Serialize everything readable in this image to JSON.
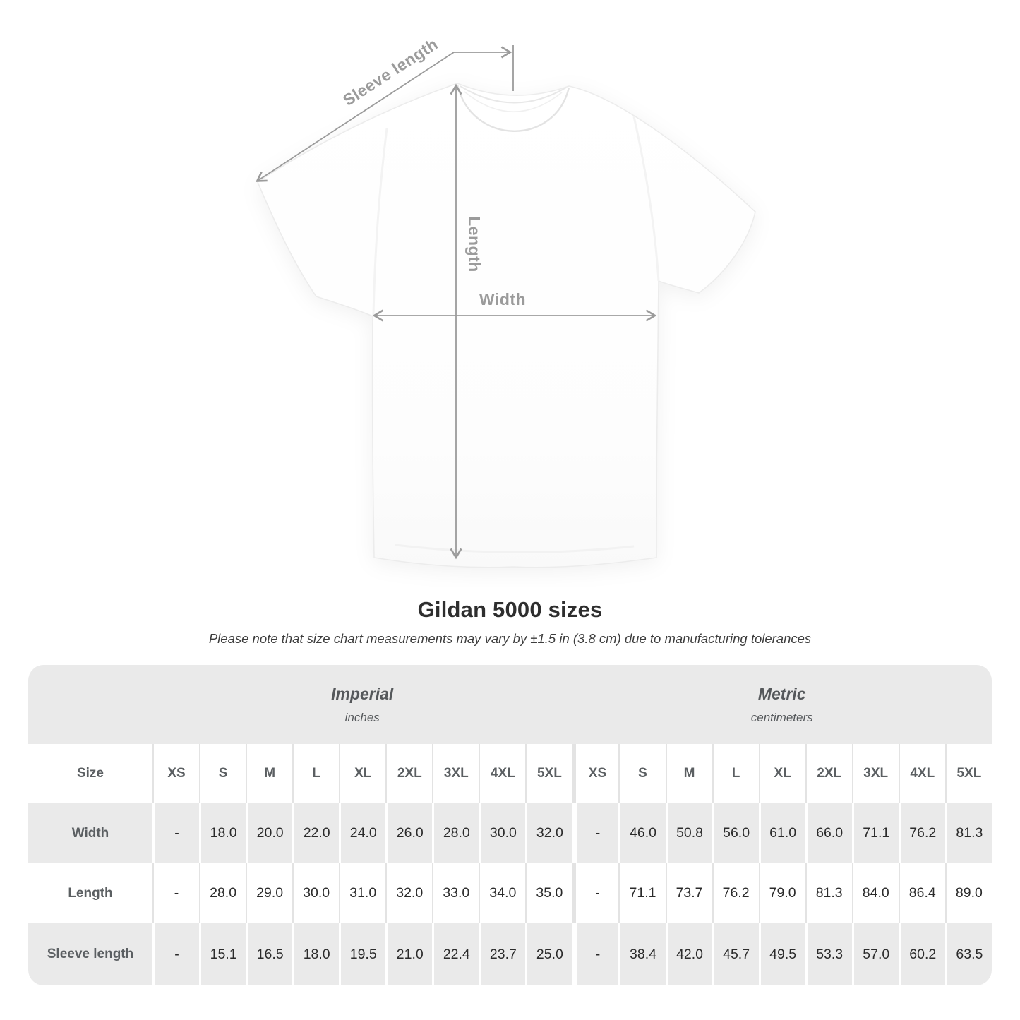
{
  "figure": {
    "labels": {
      "sleeve_length": "Sleeve length",
      "length": "Length",
      "width": "Width"
    }
  },
  "title": "Gildan 5000 sizes",
  "subtitle": "Please note that size chart measurements may vary by ±1.5 in (3.8 cm) due to manufacturing tolerances",
  "table": {
    "sections": [
      {
        "name": "Imperial",
        "unit": "inches"
      },
      {
        "name": "Metric",
        "unit": "centimeters"
      }
    ],
    "size_header": "Size",
    "sizes": [
      "XS",
      "S",
      "M",
      "L",
      "XL",
      "2XL",
      "3XL",
      "4XL",
      "5XL"
    ],
    "rows": [
      {
        "label": "Width",
        "imperial": [
          "-",
          "18.0",
          "20.0",
          "22.0",
          "24.0",
          "26.0",
          "28.0",
          "30.0",
          "32.0"
        ],
        "metric": [
          "-",
          "46.0",
          "50.8",
          "56.0",
          "61.0",
          "66.0",
          "71.1",
          "76.2",
          "81.3"
        ]
      },
      {
        "label": "Length",
        "imperial": [
          "-",
          "28.0",
          "29.0",
          "30.0",
          "31.0",
          "32.0",
          "33.0",
          "34.0",
          "35.0"
        ],
        "metric": [
          "-",
          "71.1",
          "73.7",
          "76.2",
          "79.0",
          "81.3",
          "84.0",
          "86.4",
          "89.0"
        ]
      },
      {
        "label": "Sleeve length",
        "imperial": [
          "-",
          "15.1",
          "16.5",
          "18.0",
          "19.5",
          "21.0",
          "22.4",
          "23.7",
          "25.0"
        ],
        "metric": [
          "-",
          "38.4",
          "42.0",
          "45.7",
          "49.5",
          "53.3",
          "57.0",
          "60.2",
          "63.5"
        ]
      }
    ]
  },
  "colors": {
    "stripe_gray": "#eaeaea",
    "separator_on_white": "#e3e3e3",
    "separator_on_gray": "#ffffff",
    "annotation_gray": "#9b9b9b",
    "header_text": "#5b5f62",
    "value_text": "#2b2b2b",
    "title_text": "#2e2e2e"
  }
}
